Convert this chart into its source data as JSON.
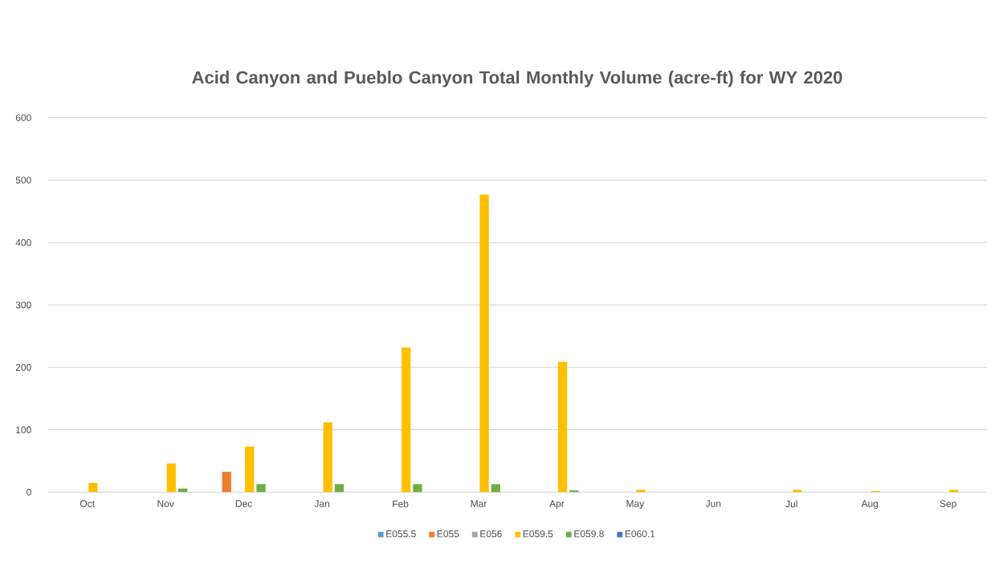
{
  "chart_data": {
    "type": "bar",
    "title": "Acid Canyon and Pueblo Canyon Total Monthly Volume (acre-ft) for WY 2020",
    "categories": [
      "Oct",
      "Nov",
      "Dec",
      "Jan",
      "Feb",
      "Mar",
      "Apr",
      "May",
      "Jun",
      "Jul",
      "Aug",
      "Sep"
    ],
    "series": [
      {
        "name": "E055.5",
        "color": "#5b9bd5",
        "values": [
          0,
          0,
          0,
          0,
          0,
          0,
          0,
          0,
          0,
          0,
          0,
          0
        ]
      },
      {
        "name": "E055",
        "color": "#ed7d31",
        "values": [
          0,
          0,
          33,
          0,
          0,
          0,
          0,
          0,
          0,
          0,
          0,
          0
        ]
      },
      {
        "name": "E056",
        "color": "#a5a5a5",
        "values": [
          0,
          0,
          0,
          0,
          0,
          0,
          0,
          0,
          0,
          0,
          0,
          0
        ]
      },
      {
        "name": "E059.5",
        "color": "#ffc000",
        "values": [
          15,
          46,
          73,
          112,
          232,
          477,
          209,
          4,
          0,
          4,
          2,
          4
        ]
      },
      {
        "name": "E059.8",
        "color": "#70ad47",
        "values": [
          0,
          6,
          13,
          13,
          13,
          13,
          3,
          0,
          0,
          0,
          0,
          0
        ]
      },
      {
        "name": "E060.1",
        "color": "#4472c4",
        "values": [
          0,
          0,
          0,
          0,
          0,
          0,
          0,
          0,
          0,
          0,
          0,
          0
        ]
      }
    ],
    "ylim": [
      0,
      600
    ],
    "yticks": [
      0,
      100,
      200,
      300,
      400,
      500,
      600
    ],
    "grid": "y",
    "legend": "bottom"
  }
}
